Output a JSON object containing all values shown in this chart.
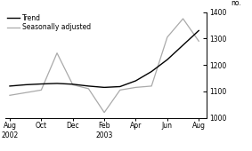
{
  "x_labels": [
    "Aug\n2002",
    "Oct",
    "Dec",
    "Feb\n2003",
    "Apr",
    "Jun",
    "Aug"
  ],
  "x_positions": [
    0,
    2,
    4,
    6,
    8,
    10,
    12
  ],
  "trend_x": [
    0,
    1,
    2,
    3,
    4,
    5,
    6,
    7,
    8,
    9,
    10,
    11,
    12
  ],
  "trend_y": [
    1120,
    1125,
    1128,
    1130,
    1127,
    1120,
    1115,
    1118,
    1140,
    1175,
    1220,
    1275,
    1330
  ],
  "seasonal_x": [
    0,
    1,
    2,
    3,
    4,
    5,
    6,
    7,
    8,
    9,
    10,
    11,
    12
  ],
  "seasonal_y": [
    1085,
    1095,
    1105,
    1245,
    1125,
    1110,
    1020,
    1105,
    1115,
    1120,
    1305,
    1375,
    1290
  ],
  "ylim": [
    1000,
    1400
  ],
  "yticks": [
    1000,
    1100,
    1200,
    1300,
    1400
  ],
  "ylabel": "no.",
  "trend_color": "#000000",
  "seasonal_color": "#aaaaaa",
  "trend_label": "Trend",
  "seasonal_label": "Seasonally adjusted",
  "trend_linewidth": 1.0,
  "seasonal_linewidth": 0.9,
  "background_color": "#ffffff",
  "legend_fontsize": 5.5,
  "tick_fontsize": 5.5
}
